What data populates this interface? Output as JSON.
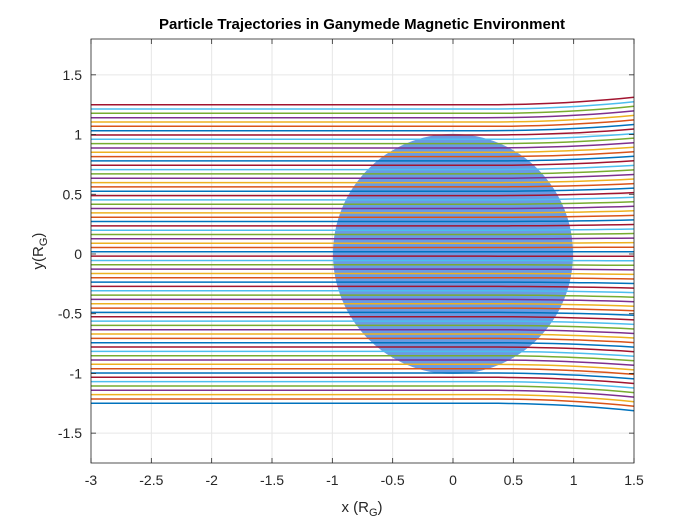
{
  "chart_data": {
    "type": "line",
    "title": "Particle Trajectories in Ganymede Magnetic Environment",
    "xlabel": {
      "main": "x (R",
      "sub": "G",
      "close": ")"
    },
    "ylabel": {
      "main": "y(R",
      "sub": "G",
      "close": ")"
    },
    "xlim": [
      -3,
      1.5
    ],
    "ylim": [
      -1.75,
      1.8
    ],
    "xticks": [
      "-3",
      "-2.5",
      "-2",
      "-1.5",
      "-1",
      "-0.5",
      "0",
      "0.5",
      "1",
      "1.5"
    ],
    "yticks": [
      "-1.5",
      "-1",
      "-0.5",
      "0",
      "0.5",
      "1",
      "1.5"
    ],
    "grid": true,
    "body": {
      "shape": "circle",
      "center": [
        0,
        0
      ],
      "radius": 1.0,
      "color": "#6a9be3"
    },
    "trajectories": {
      "x_start": -3,
      "x_end": 1.5,
      "count": 70,
      "y_start_range": [
        -1.25,
        1.25
      ],
      "deflection_start_x": 0.3,
      "end_spread": 1.05,
      "series_colors": [
        "#0072BD",
        "#D95319",
        "#EDB120",
        "#7E2F8E",
        "#77AC30",
        "#4DBEEE",
        "#A2142F"
      ]
    }
  }
}
